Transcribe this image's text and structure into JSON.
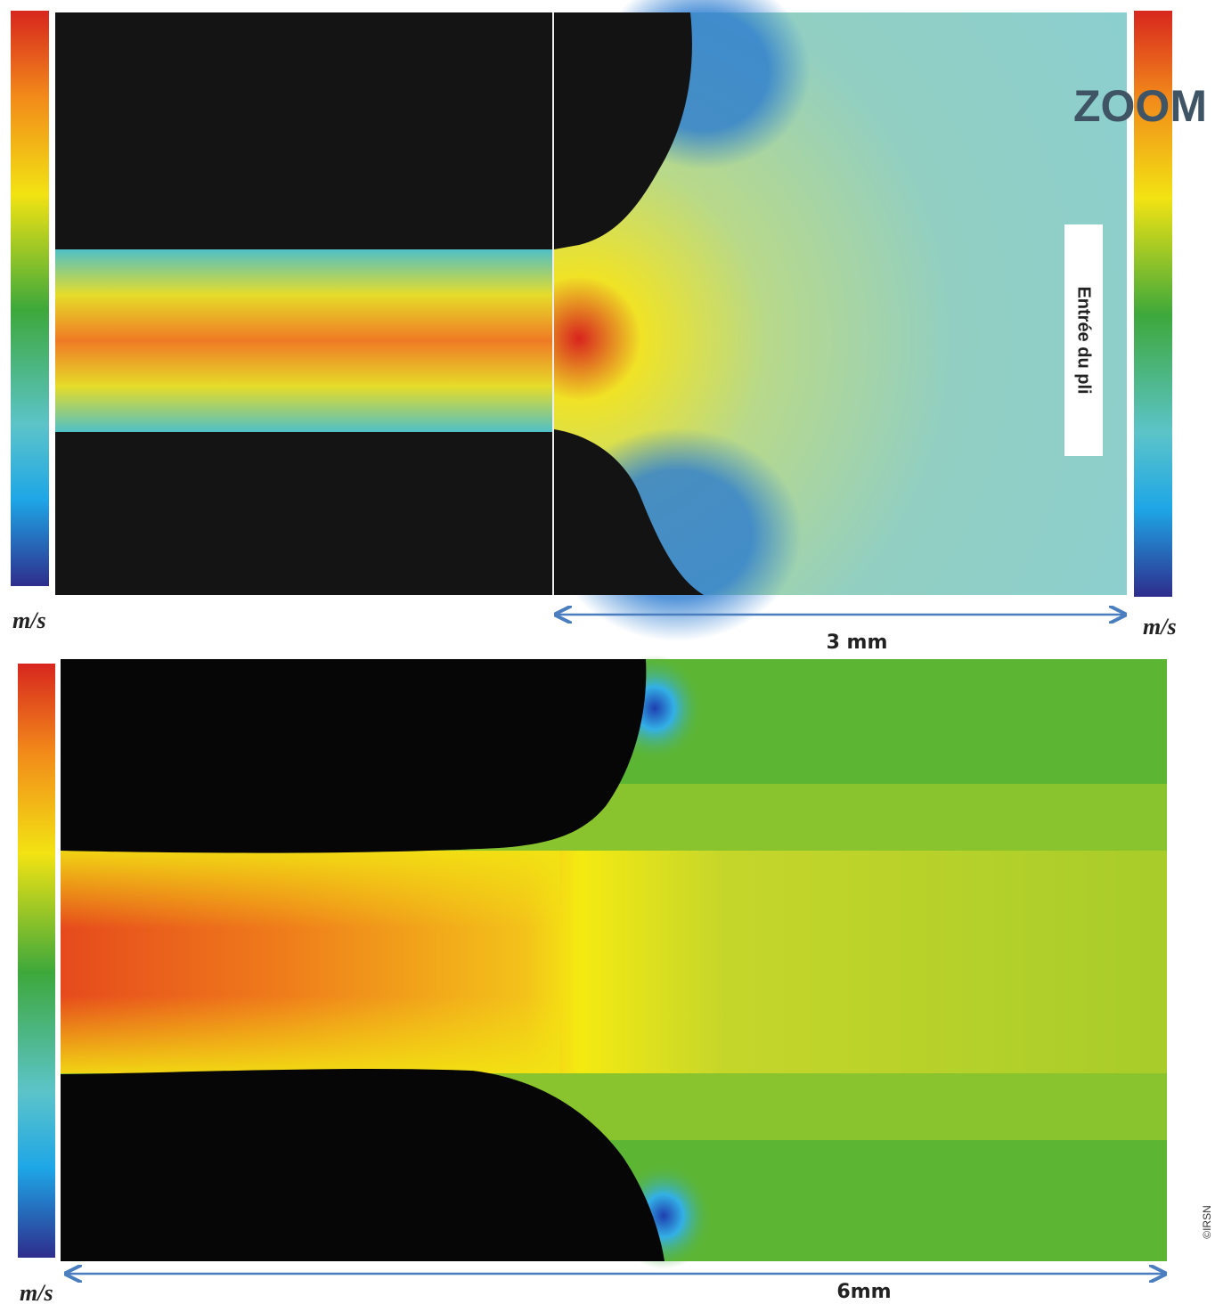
{
  "zoom_badge": "ZOOM",
  "top_panel": {
    "left_unit": "m/s",
    "right_unit": "m/s",
    "region_label": "Entrée du pli",
    "scale_label": "3 mm"
  },
  "bottom_panel": {
    "unit": "m/s",
    "scale_label": "6mm"
  },
  "credit": "©IRSN"
}
